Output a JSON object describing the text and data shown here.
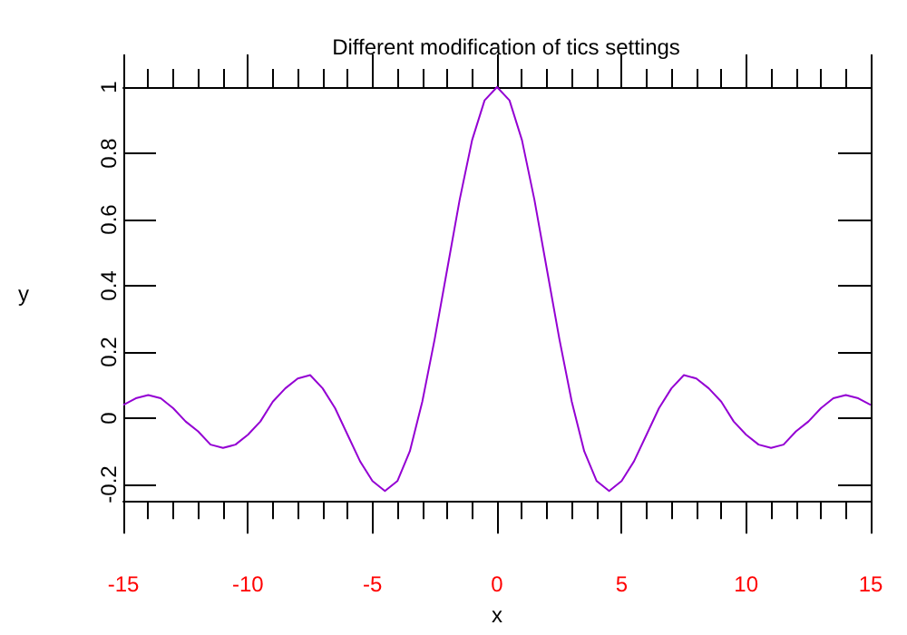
{
  "chart_data": {
    "type": "line",
    "title": "Different modification of tics settings",
    "xlabel": "x",
    "ylabel": "y",
    "x": [
      -15,
      -14.5,
      -14,
      -13.5,
      -13,
      -12.5,
      -12,
      -11.5,
      -11,
      -10.5,
      -10,
      -9.5,
      -9,
      -8.5,
      -8,
      -7.5,
      -7,
      -6.5,
      -6,
      -5.5,
      -5,
      -4.5,
      -4,
      -3.5,
      -3,
      -2.5,
      -2,
      -1.5,
      -1,
      -0.5,
      0,
      0.5,
      1,
      1.5,
      2,
      2.5,
      3,
      3.5,
      4,
      4.5,
      5,
      5.5,
      6,
      6.5,
      7,
      7.5,
      8,
      8.5,
      9,
      9.5,
      10,
      10.5,
      11,
      11.5,
      12,
      12.5,
      13,
      13.5,
      14,
      14.5,
      15
    ],
    "series": [
      {
        "color": "#9400d3",
        "values": [
          0.04,
          0.06,
          0.07,
          0.06,
          0.03,
          -0.01,
          -0.04,
          -0.08,
          -0.09,
          -0.08,
          -0.05,
          -0.01,
          0.05,
          0.09,
          0.12,
          0.13,
          0.09,
          0.03,
          -0.05,
          -0.13,
          -0.19,
          -0.22,
          -0.19,
          -0.1,
          0.05,
          0.24,
          0.45,
          0.66,
          0.84,
          0.96,
          1,
          0.96,
          0.84,
          0.66,
          0.45,
          0.24,
          0.05,
          -0.1,
          -0.19,
          -0.22,
          -0.19,
          -0.13,
          -0.05,
          0.03,
          0.09,
          0.13,
          0.12,
          0.09,
          0.05,
          -0.01,
          -0.05,
          -0.08,
          -0.09,
          -0.08,
          -0.04,
          -0.01,
          0.03,
          0.06,
          0.07,
          0.06,
          0.04
        ]
      }
    ],
    "xlim": [
      -15,
      15
    ],
    "xticks": [
      -15,
      -10,
      -5,
      0,
      5,
      10,
      15
    ],
    "ylim": [
      -0.25,
      1
    ],
    "yticks": [
      -0.2,
      0,
      0.2,
      0.4,
      0.6,
      0.8,
      1
    ],
    "marker": "none",
    "line_style": "solid"
  }
}
